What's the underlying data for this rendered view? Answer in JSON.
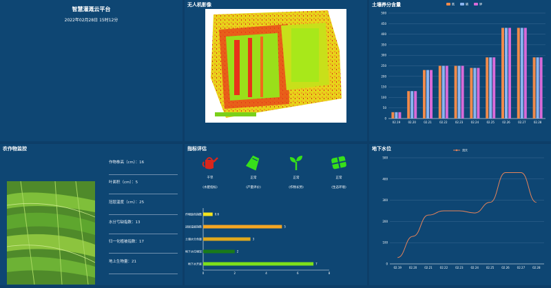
{
  "header": {
    "title": "智慧灌溉云平台",
    "datetime": "2022年02月28日 15时12分"
  },
  "drone_panel": {
    "title": "无人机影像"
  },
  "crop_panel": {
    "title": "农作物监控",
    "metrics": [
      "作物株高（cm）：16",
      "叶面积（cm）：5",
      "冠层温度（cm）：25",
      "水分亏缺指数：13",
      "归一化植被指数：17",
      "地上生物量：21"
    ]
  },
  "indicator_panel": {
    "title": "指标评估",
    "indicators": [
      {
        "icon": "watering-can-icon",
        "status": "干旱",
        "name": "(水肥指标)",
        "color": "#d9261c"
      },
      {
        "icon": "fertilizer-bag-icon",
        "status": "正常",
        "name": "(产量评价)",
        "color": "#37e01a"
      },
      {
        "icon": "seedling-icon",
        "status": "正常",
        "name": "(作物长势)",
        "color": "#37e01a"
      },
      {
        "icon": "field-grid-icon",
        "status": "正常",
        "name": "(生态环境)",
        "color": "#37e01a"
      }
    ]
  },
  "chart_data": [
    {
      "type": "bar",
      "title": "土壤养分含量",
      "categories": [
        "02.19",
        "02.20",
        "02.21",
        "02.22",
        "02.23",
        "02.24",
        "02.25",
        "02.26",
        "02.27",
        "02.28"
      ],
      "series": [
        {
          "name": "氮",
          "color": "#f08a4b",
          "values": [
            30,
            130,
            230,
            250,
            250,
            240,
            290,
            430,
            430,
            290
          ]
        },
        {
          "name": "磷",
          "color": "#8ab4f0",
          "values": [
            30,
            130,
            230,
            250,
            250,
            240,
            290,
            430,
            430,
            290
          ]
        },
        {
          "name": "钾",
          "color": "#d86ad8",
          "values": [
            30,
            130,
            230,
            250,
            250,
            240,
            290,
            430,
            430,
            290
          ]
        }
      ],
      "ylim": [
        0,
        500
      ],
      "yticks": [
        0,
        50,
        100,
        150,
        200,
        250,
        300,
        350,
        400,
        450,
        500
      ],
      "grid": true,
      "legend": "top"
    },
    {
      "type": "bar",
      "orientation": "horizontal",
      "categories": [
        "作物缺色指数",
        "冠层温度指数",
        "土壤水分含量",
        "地下水位埋深",
        "地下水开度"
      ],
      "values": [
        0.6,
        5,
        3,
        2,
        7
      ],
      "colors": [
        "#f5e41c",
        "#f5a623",
        "#e0a81c",
        "#1a7a1a",
        "#7ee01a"
      ],
      "xlim": [
        0,
        8
      ],
      "xticks": [
        0,
        2,
        4,
        6,
        8
      ]
    },
    {
      "type": "line",
      "title": "地下水位",
      "series": [
        {
          "name": "流天",
          "color": "#e8845a",
          "values": [
            30,
            130,
            230,
            250,
            250,
            240,
            290,
            430,
            430,
            290
          ]
        }
      ],
      "categories": [
        "02.19",
        "02.20",
        "02.21",
        "02.22",
        "02.23",
        "02.24",
        "02.25",
        "02.26",
        "02.27",
        "02.28"
      ],
      "ylim": [
        0,
        500
      ],
      "yticks": [
        0,
        100,
        200,
        300,
        400,
        500
      ],
      "grid": true,
      "legend": "top"
    }
  ]
}
